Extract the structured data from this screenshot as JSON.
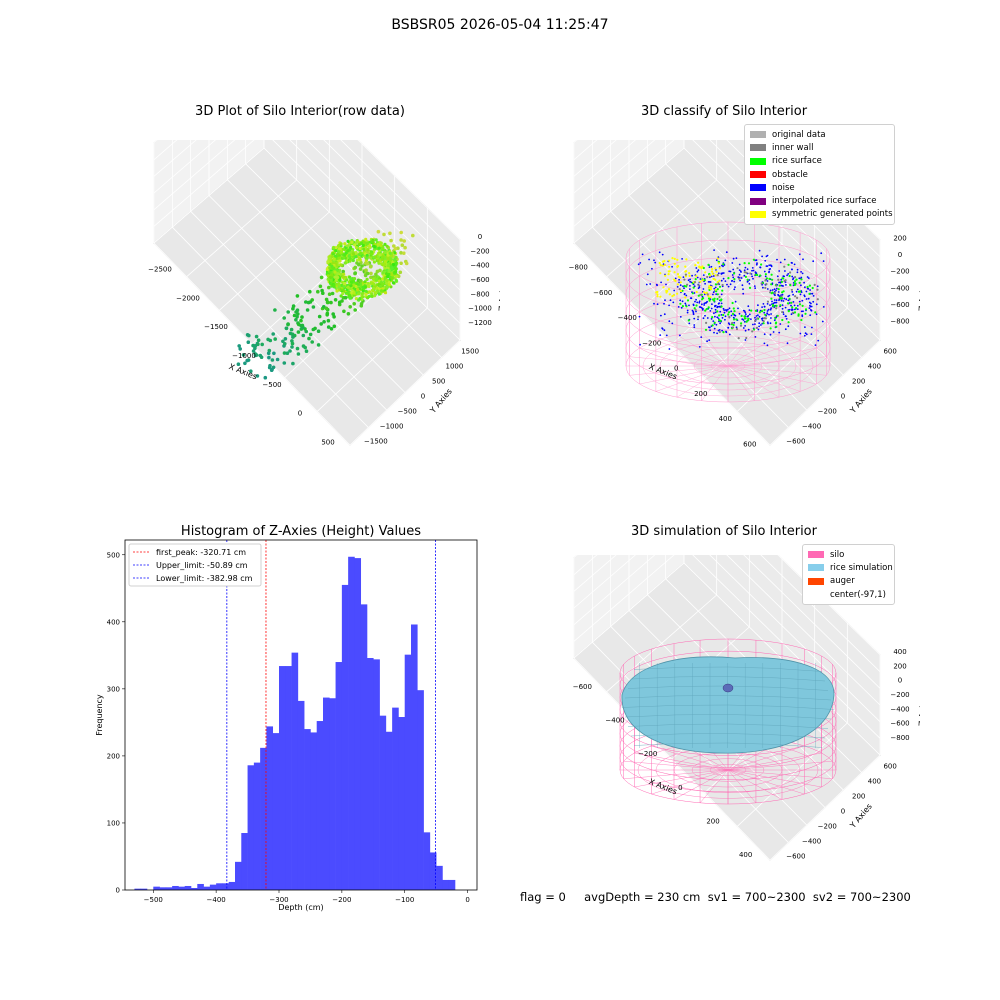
{
  "suptitle": "BSBSR05 2026-05-04 11:25:47",
  "footer": "flag = 0     avgDepth = 230 cm  sv1 = 700~2300  sv2 = 700~2300",
  "panels": {
    "p1": {
      "title": "3D Plot of Silo Interior(row data)",
      "xlabel": "X Axies",
      "ylabel": "Y Axies",
      "zlabel": "Z Axies (Depth)",
      "xticks": [
        "−2500",
        "−2000",
        "−1500",
        "−1000",
        "−500",
        "0",
        "500"
      ],
      "yticks": [
        "−1500",
        "−1000",
        "−500",
        "0",
        "500",
        "1000",
        "1500"
      ],
      "zticks": [
        "0",
        "−200",
        "−400",
        "−600",
        "−800",
        "−1000",
        "−1200"
      ]
    },
    "p2": {
      "title": "3D classify of Silo Interior",
      "xlabel": "X Axies",
      "ylabel": "Y Axies",
      "zlabel": "Z Axies (Depth)",
      "xticks": [
        "−800",
        "−600",
        "−400",
        "−200",
        "0",
        "200",
        "400",
        "600"
      ],
      "yticks": [
        "−600",
        "−400",
        "−200",
        "0",
        "200",
        "400",
        "600"
      ],
      "zticks": [
        "200",
        "0",
        "−200",
        "−400",
        "−600",
        "−800"
      ],
      "legend": [
        {
          "label": "original data",
          "color": "#b0b0b0"
        },
        {
          "label": "inner wall",
          "color": "#808080"
        },
        {
          "label": "rice surface",
          "color": "#00ff00"
        },
        {
          "label": "obstacle",
          "color": "#ff0000"
        },
        {
          "label": "noise",
          "color": "#0000ff"
        },
        {
          "label": "interpolated rice surface",
          "color": "#800080"
        },
        {
          "label": "symmetric generated points",
          "color": "#ffff00"
        }
      ],
      "tick_overlap": "00"
    },
    "p4": {
      "title": "3D simulation of Silo Interior",
      "xlabel": "X Axies",
      "ylabel": "Y Axies",
      "zlabel": "Z Axies (Depth)",
      "xticks": [
        "−600",
        "−400",
        "−200",
        "0",
        "200",
        "400"
      ],
      "yticks": [
        "−600",
        "−400",
        "−200",
        "0",
        "200",
        "400",
        "600"
      ],
      "zticks": [
        "400",
        "200",
        "0",
        "−200",
        "−400",
        "−600",
        "−800"
      ],
      "legend": [
        {
          "label": "silo",
          "color": "#ff69b4"
        },
        {
          "label": "rice simulation",
          "color": "#87ceeb"
        },
        {
          "label": "auger",
          "color": "#ff4500"
        },
        {
          "label": "center(-97,1)",
          "color": "#ffffff"
        }
      ]
    }
  },
  "chart_data": {
    "type": "bar",
    "title": "Histogram of Z-Axies (Height) Values",
    "xlabel": "Depth (cm)",
    "ylabel": "Frequency",
    "xlim": [
      -545,
      15
    ],
    "ylim": [
      0,
      522
    ],
    "xticks": [
      -500,
      -400,
      -300,
      -200,
      -100,
      0
    ],
    "yticks": [
      0,
      100,
      200,
      300,
      400,
      500
    ],
    "bar_color": "#4b4bff",
    "bin_width": 10,
    "bins_start": [
      -530,
      -520,
      -510,
      -500,
      -490,
      -480,
      -470,
      -460,
      -450,
      -440,
      -430,
      -420,
      -410,
      -400,
      -390,
      -380,
      -370,
      -360,
      -350,
      -340,
      -330,
      -320,
      -310,
      -300,
      -290,
      -280,
      -270,
      -260,
      -250,
      -240,
      -230,
      -220,
      -210,
      -200,
      -190,
      -180,
      -170,
      -160,
      -150,
      -140,
      -130,
      -120,
      -110,
      -100,
      -90,
      -80,
      -70,
      -60,
      -50,
      -40,
      -30,
      -20
    ],
    "values": [
      2,
      2,
      0,
      5,
      4,
      4,
      6,
      5,
      6,
      3,
      9,
      5,
      8,
      10,
      10,
      12,
      42,
      85,
      186,
      190,
      212,
      244,
      234,
      334,
      334,
      354,
      282,
      240,
      235,
      252,
      287,
      286,
      340,
      455,
      497,
      495,
      426,
      346,
      344,
      260,
      236,
      272,
      258,
      351,
      396,
      298,
      86,
      56,
      36,
      15,
      15,
      0
    ],
    "vlines": [
      {
        "x": -320.71,
        "color": "#ff0000",
        "label": "first_peak: -320.71 cm"
      },
      {
        "x": -50.89,
        "color": "#0000ff",
        "label": "Upper_limit: -50.89 cm"
      },
      {
        "x": -382.98,
        "color": "#0000ff",
        "label": "Lower_limit: -382.98 cm"
      }
    ],
    "legend_position": "upper left"
  }
}
